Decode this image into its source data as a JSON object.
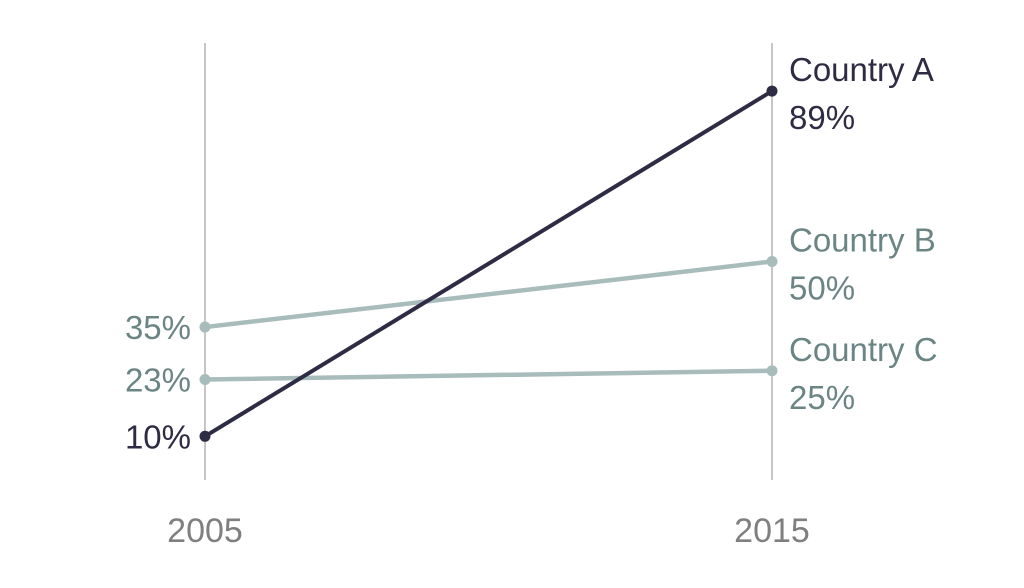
{
  "chart_data": {
    "type": "slope",
    "title": "",
    "xlabel": "",
    "ylabel": "",
    "x": [
      "2005",
      "2015"
    ],
    "ylim": [
      0,
      100
    ],
    "grid": false,
    "legend": "none",
    "series": [
      {
        "name": "Country A",
        "values": [
          10,
          89
        ],
        "labels": [
          "10%",
          "89%"
        ],
        "color": "#2e2c44"
      },
      {
        "name": "Country B",
        "values": [
          35,
          50
        ],
        "labels": [
          "35%",
          "50%"
        ],
        "color": "#a8bcbb"
      },
      {
        "name": "Country C",
        "values": [
          23,
          25
        ],
        "labels": [
          "23%",
          "25%"
        ],
        "color": "#a8bcbb"
      }
    ],
    "label_colors": {
      "Country A": "#2e2c44",
      "Country B": "#6b8584",
      "Country C": "#6b8584"
    }
  }
}
